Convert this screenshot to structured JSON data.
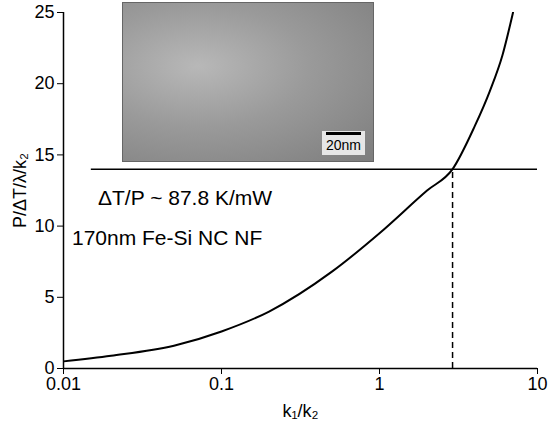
{
  "chart_data": {
    "type": "line",
    "x": [
      0.01,
      0.02,
      0.05,
      0.1,
      0.2,
      0.5,
      1,
      2,
      2.9,
      4,
      5,
      6,
      7
    ],
    "values": [
      0.5,
      0.9,
      1.6,
      2.6,
      4.0,
      6.8,
      9.5,
      12.5,
      14,
      17,
      19.5,
      22,
      25
    ],
    "color": "#000000",
    "xlabel": "k₁/k₂",
    "ylabel": "P/ΔT/λ/k₂",
    "log": "x",
    "xlim": [
      0.01,
      10
    ],
    "xticks": [
      0.01,
      0.1,
      1,
      10
    ],
    "ylim": [
      0,
      25
    ],
    "yticks": [
      0,
      5,
      10,
      15,
      20,
      25
    ],
    "horizontal_line": {
      "y": 14,
      "x": [
        0.015,
        10
      ]
    },
    "vertical_line": {
      "x": 2.9,
      "y": [
        0,
        14
      ],
      "line_style": "dashed"
    },
    "annotations": [
      "ΔT/P ~ 87.8 K/mW",
      "170nm Fe-Si NC NF"
    ],
    "inset": {
      "scale_bar_label": "20nm"
    }
  }
}
